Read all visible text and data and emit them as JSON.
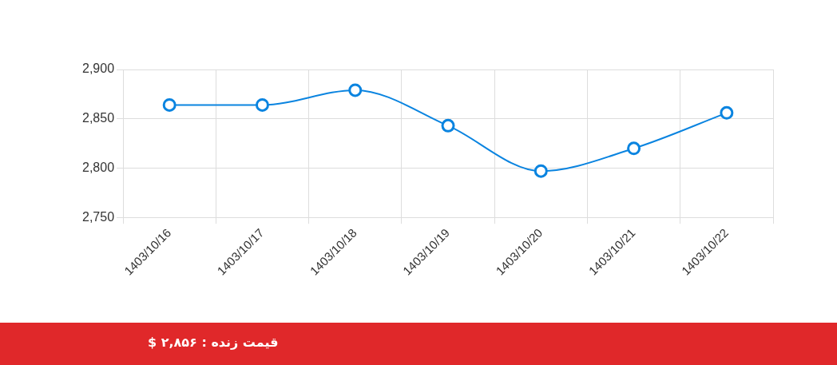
{
  "chart_data": {
    "type": "line",
    "categories": [
      "1403/10/16",
      "1403/10/17",
      "1403/10/18",
      "1403/10/19",
      "1403/10/20",
      "1403/10/21",
      "1403/10/22"
    ],
    "series": [
      {
        "color": "#0a84e0",
        "values": [
          2864,
          2864,
          2879,
          2843,
          2797,
          2820,
          2856
        ]
      }
    ],
    "ylim": [
      2750,
      2900
    ],
    "yticks": [
      {
        "value": 2750,
        "label": "2,750"
      },
      {
        "value": 2800,
        "label": "2,800"
      },
      {
        "value": 2850,
        "label": "2,850"
      },
      {
        "value": 2900,
        "label": "2,900"
      }
    ],
    "grid": true,
    "marker": "circle",
    "line_style": "solid",
    "annotations": [
      "قیمت زنده : ۲,۸۵۶ $"
    ]
  }
}
